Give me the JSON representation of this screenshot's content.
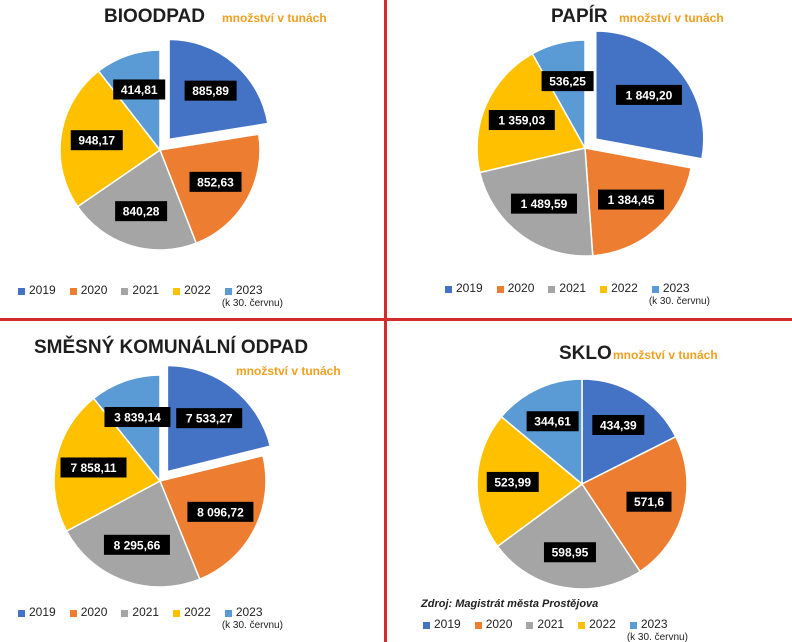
{
  "colors": {
    "2019": "#4472c4",
    "2020": "#ed7d31",
    "2021": "#a5a5a5",
    "2022": "#ffc000",
    "2023": "#5b9bd5",
    "label_box": "#000000",
    "divider": "#d52b2b",
    "subtitle": "#f0a021"
  },
  "legend_note": "(k 30. červnu)",
  "source": "Zdroj: Magistrát města Prostějova",
  "chart_data": [
    {
      "type": "pie",
      "title": "BIOODPAD",
      "subtitle": "množství v tunách",
      "categories": [
        "2019",
        "2020",
        "2021",
        "2022",
        "2023"
      ],
      "values": [
        885.89,
        852.63,
        840.28,
        948.17,
        414.81
      ],
      "labels": [
        "885,89",
        "852,63",
        "840,28",
        "948,17",
        "414,81"
      ],
      "exploded": "2019",
      "legend": "bottom"
    },
    {
      "type": "pie",
      "title": "PAPÍR",
      "subtitle": "množství v tunách",
      "categories": [
        "2019",
        "2020",
        "2021",
        "2022",
        "2023"
      ],
      "values": [
        1849.2,
        1384.45,
        1489.59,
        1359.03,
        536.25
      ],
      "labels": [
        "1 849,20",
        "1 384,45",
        "1 489,59",
        "1 359,03",
        "536,25"
      ],
      "exploded": "2019",
      "legend": "bottom"
    },
    {
      "type": "pie",
      "title": "SMĚSNÝ KOMUNÁLNÍ ODPAD",
      "subtitle": "množství v tunách",
      "categories": [
        "2019",
        "2020",
        "2021",
        "2022",
        "2023"
      ],
      "values": [
        7533.27,
        8096.72,
        8295.66,
        7858.11,
        3839.14
      ],
      "labels": [
        "7 533,27",
        "8 096,72",
        "8 295,66",
        "7 858,11",
        "3 839,14"
      ],
      "exploded": "2019",
      "legend": "bottom"
    },
    {
      "type": "pie",
      "title": "SKLO",
      "subtitle": "množství v tunách",
      "categories": [
        "2019",
        "2020",
        "2021",
        "2022",
        "2023"
      ],
      "values": [
        434.39,
        571.6,
        598.95,
        523.99,
        344.61
      ],
      "labels": [
        "434,39",
        "571,6",
        "598,95",
        "523,99",
        "344,61"
      ],
      "exploded": "",
      "legend": "bottom"
    }
  ]
}
